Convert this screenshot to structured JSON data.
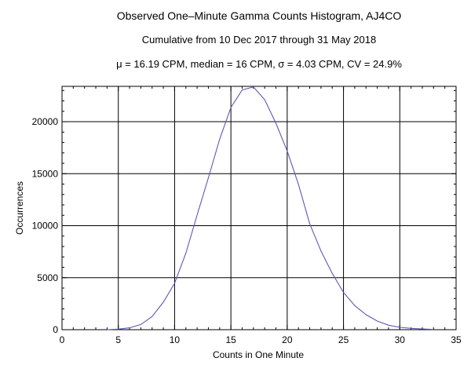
{
  "chart_data": {
    "type": "line",
    "title": "Observed One–Minute Gamma Counts Histogram, AJ4CO",
    "subtitle": "Cumulative from 10 Dec 2017 through 31 May 2018",
    "annotation": "μ = 16.19 CPM,   median = 16 CPM,   σ = 4.03 CPM,   CV = 24.9%",
    "xlabel": "Counts in One Minute",
    "ylabel": "Occurrences",
    "xlim": [
      0,
      35
    ],
    "ylim": [
      0,
      23400
    ],
    "xticks": [
      0,
      5,
      10,
      15,
      20,
      25,
      30,
      35
    ],
    "yticks": [
      0,
      5000,
      10000,
      15000,
      20000
    ],
    "grid": true,
    "line_color": "#5a5ab4",
    "series": [
      {
        "x": [
          4,
          5,
          6,
          7,
          8,
          9,
          10,
          11,
          12,
          13,
          14,
          15,
          16,
          17,
          18,
          19,
          20,
          21,
          22,
          23,
          24,
          25,
          26,
          27,
          28,
          29,
          30,
          31,
          32,
          33
        ],
        "y": [
          10,
          50,
          180,
          500,
          1260,
          2650,
          4460,
          7360,
          11030,
          14610,
          18310,
          21360,
          23050,
          23350,
          22120,
          19850,
          17180,
          13980,
          10200,
          7560,
          5420,
          3580,
          2320,
          1440,
          830,
          430,
          230,
          130,
          75,
          25
        ]
      }
    ]
  }
}
